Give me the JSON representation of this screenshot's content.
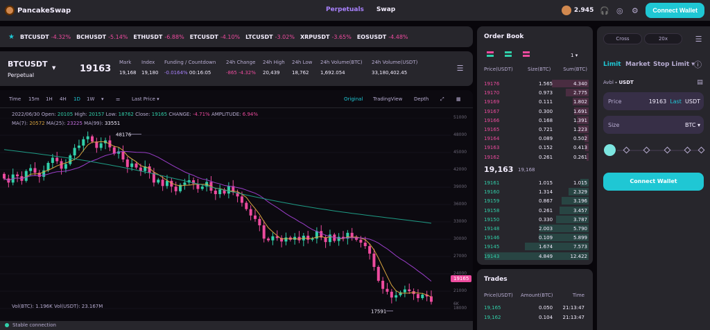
{
  "nav": {
    "logo": "PancakeSwap",
    "links": [
      "Perpetuals",
      "Swap"
    ],
    "cake_price": "2.945",
    "connect": "Connect Wallet"
  },
  "ticker": [
    {
      "sym": "BTCUSDT",
      "chg": "-4.32%"
    },
    {
      "sym": "BCHUSDT",
      "chg": "-5.14%"
    },
    {
      "sym": "ETHUSDT",
      "chg": "-6.88%"
    },
    {
      "sym": "ETCUSDT",
      "chg": "-4.10%"
    },
    {
      "sym": "LTCUSDT",
      "chg": "-3.02%"
    },
    {
      "sym": "XRPUSDT",
      "chg": "-3.65%"
    },
    {
      "sym": "EOSUSDT",
      "chg": "-4.48%"
    }
  ],
  "market": {
    "pair": "BTCUSDT",
    "type": "Perpetual",
    "last": "19163",
    "stats": [
      {
        "label": "Mark",
        "value": "19,168"
      },
      {
        "label": "Index",
        "value": "19,180"
      },
      {
        "label": "Funding / Countdown",
        "value": "-0.0164%",
        "value2": "00:16:05"
      },
      {
        "label": "24h Change",
        "value": "-865 -4.32%"
      },
      {
        "label": "24h High",
        "value": "20,439"
      },
      {
        "label": "24h Low",
        "value": "18,762"
      },
      {
        "label": "24h Volume(BTC)",
        "value": "1,692.054"
      },
      {
        "label": "24h Volume(USDT)",
        "value": "33,180,402.45"
      }
    ]
  },
  "toolbar": {
    "timeframes": [
      "Time",
      "15m",
      "1H",
      "4H",
      "1D",
      "1W"
    ],
    "active_tf": "1D",
    "price_type": "Last Price",
    "views": [
      "Original",
      "TradingView",
      "Depth"
    ],
    "active_view": "Original"
  },
  "ohlc": {
    "date": "2022/06/30",
    "open_lbl": "Open:",
    "open": "20105",
    "high_lbl": "High:",
    "high": "20157",
    "low_lbl": "Low:",
    "low": "18762",
    "close_lbl": "Close:",
    "close": "19165",
    "change_lbl": "CHANGE:",
    "change": "-4.71%",
    "amp_lbl": "AMPLITUDE:",
    "amp": "6.94%"
  },
  "ma": {
    "ma7_lbl": "MA(7):",
    "ma7": "20572",
    "ma25_lbl": "MA(25):",
    "ma25": "23225",
    "ma99_lbl": "MA(99):",
    "ma99": "33551"
  },
  "chart_data": {
    "type": "candlestick",
    "yticks": [
      "51000",
      "48000",
      "45000",
      "42000",
      "39000",
      "36000",
      "33000",
      "30000",
      "27000",
      "24000",
      "21000",
      "18000",
      "15000"
    ],
    "ylim": [
      15000,
      51000
    ],
    "high_label": "48176",
    "low_label": "17591",
    "last_tag": "19165",
    "closes": [
      40500,
      39800,
      41200,
      40900,
      40100,
      41800,
      42300,
      41500,
      40800,
      41900,
      43200,
      44100,
      43500,
      42200,
      43000,
      44500,
      45800,
      46200,
      47300,
      47800,
      46900,
      45800,
      46600,
      47100,
      45900,
      44800,
      45200,
      43800,
      42500,
      43100,
      42400,
      41800,
      42600,
      41500,
      39800,
      40300,
      39200,
      40100,
      39100,
      38300,
      39400,
      39800,
      40200,
      39600,
      38700,
      39100,
      39900,
      38400,
      37800,
      38600,
      37900,
      39200,
      38100,
      37400,
      36300,
      35200,
      34100,
      33500,
      32400,
      30100,
      29800,
      30500,
      30200,
      29600,
      30300,
      29900,
      30400,
      29800,
      30600,
      29900,
      30100,
      31400,
      30300,
      29500,
      30800,
      29700,
      30400,
      30100,
      31100,
      30400,
      29900,
      29400,
      28800,
      27500,
      25200,
      22800,
      21400,
      20900,
      19900,
      20300,
      20800,
      21300,
      21000,
      20500,
      19800,
      20400,
      20100,
      19165
    ],
    "ma_series": [
      {
        "name": "MA(7)",
        "color": "#d9a43f"
      },
      {
        "name": "MA(25)",
        "color": "#9a3ec9"
      },
      {
        "name": "MA(99)",
        "color": "#1e9c85"
      }
    ]
  },
  "volume": {
    "vol_btc_lbl": "Vol(BTC):",
    "vol_btc": "1.196K",
    "vol_usdt_lbl": "Vol(USDT):",
    "vol_usdt": "23.167M",
    "ytick": "6K"
  },
  "orderbook": {
    "title": "Order Book",
    "depth": "1",
    "headers": [
      "Price(USDT)",
      "Size(BTC)",
      "Sum(BTC)"
    ],
    "asks": [
      {
        "p": "19176",
        "s": "1.565",
        "c": "4.340",
        "d": 0.35
      },
      {
        "p": "19170",
        "s": "0.973",
        "c": "2.775",
        "d": 0.22
      },
      {
        "p": "19169",
        "s": "0.111",
        "c": "1.802",
        "d": 0.15
      },
      {
        "p": "19167",
        "s": "0.300",
        "c": "1.691",
        "d": 0.14
      },
      {
        "p": "19166",
        "s": "0.168",
        "c": "1.391",
        "d": 0.11
      },
      {
        "p": "19165",
        "s": "0.721",
        "c": "1.223",
        "d": 0.1
      },
      {
        "p": "19164",
        "s": "0.089",
        "c": "0.502",
        "d": 0.04
      },
      {
        "p": "19163",
        "s": "0.152",
        "c": "0.413",
        "d": 0.03
      },
      {
        "p": "19162",
        "s": "0.261",
        "c": "0.261",
        "d": 0.02
      }
    ],
    "mid": "19,163",
    "mid_index": "19,168",
    "bids": [
      {
        "p": "19161",
        "s": "1.015",
        "c": "1.015",
        "d": 0.08
      },
      {
        "p": "19160",
        "s": "1.314",
        "c": "2.329",
        "d": 0.19
      },
      {
        "p": "19159",
        "s": "0.867",
        "c": "3.196",
        "d": 0.26
      },
      {
        "p": "19158",
        "s": "0.261",
        "c": "3.457",
        "d": 0.28
      },
      {
        "p": "19150",
        "s": "0.330",
        "c": "3.787",
        "d": 0.31
      },
      {
        "p": "19148",
        "s": "2.003",
        "c": "5.790",
        "d": 0.47
      },
      {
        "p": "19146",
        "s": "0.109",
        "c": "5.899",
        "d": 0.48
      },
      {
        "p": "19145",
        "s": "1.674",
        "c": "7.573",
        "d": 0.61
      },
      {
        "p": "19143",
        "s": "4.849",
        "c": "12.422",
        "d": 1.0
      }
    ]
  },
  "trades": {
    "title": "Trades",
    "headers": [
      "Price(USDT)",
      "Amount(BTC)",
      "Time"
    ],
    "rows": [
      {
        "p": "19,165",
        "a": "0.050",
        "t": "21:13:47"
      },
      {
        "p": "19,162",
        "a": "0.104",
        "t": "21:13:47"
      }
    ]
  },
  "order": {
    "margin": "Cross",
    "leverage": "20x",
    "tabs": [
      "Limit",
      "Market",
      "Stop Limit"
    ],
    "avbl_lbl": "Avbl",
    "avbl": "- USDT",
    "price_lbl": "Price",
    "price": "19163",
    "last": "Last",
    "price_unit": "USDT",
    "size_lbl": "Size",
    "size_unit": "BTC",
    "connect": "Connect Wallet"
  },
  "status": {
    "text": "Stable connection"
  },
  "colors": {
    "accent": "#1fc7d4",
    "up": "#31d0aa",
    "down": "#ed4b9e",
    "primary": "#a881fc"
  }
}
